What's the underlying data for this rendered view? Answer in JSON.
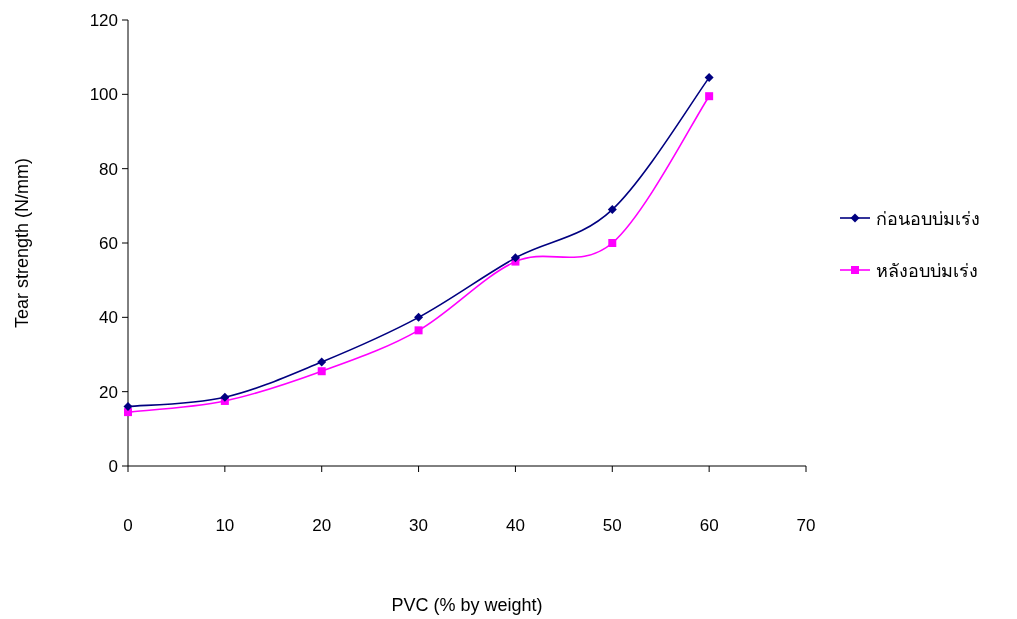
{
  "chart_data": {
    "type": "line",
    "xlabel": "PVC (% by weight)",
    "ylabel": "Tear strength (N/mm)",
    "x": [
      0,
      10,
      20,
      30,
      40,
      50,
      60
    ],
    "xlim": [
      0,
      70
    ],
    "xticks": [
      0,
      10,
      20,
      30,
      40,
      50,
      60,
      70
    ],
    "ylim": [
      0,
      120
    ],
    "yticks": [
      0,
      20,
      40,
      60,
      80,
      100,
      120
    ],
    "grid": false,
    "legend": "right",
    "line_style": "solid",
    "series": [
      {
        "name": "ก่อนอบบ่มเร่ง",
        "color": "#000080",
        "marker": "diamond",
        "values": [
          16,
          18.5,
          28,
          40,
          56,
          69,
          104.5
        ]
      },
      {
        "name": "หลังอบบ่มเร่ง",
        "color": "#ff00ff",
        "marker": "square",
        "values": [
          14.5,
          17.5,
          25.5,
          36.5,
          55,
          60,
          99.5
        ]
      }
    ]
  }
}
